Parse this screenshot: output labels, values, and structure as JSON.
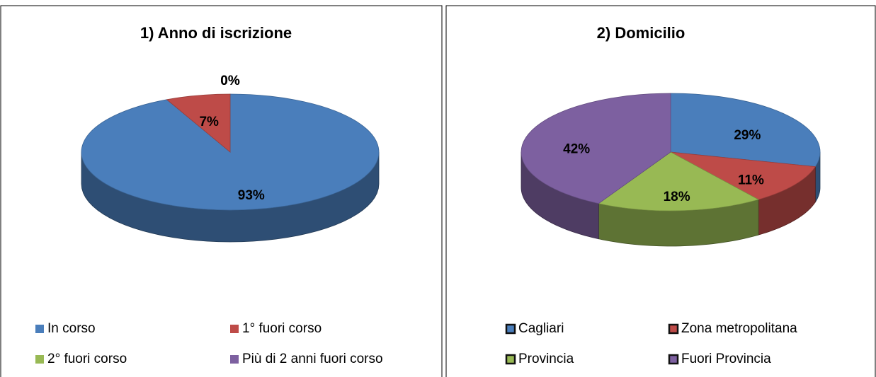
{
  "chart_data": [
    {
      "type": "pie3d",
      "title": "1) Anno di iscrizione",
      "categories": [
        "In corso",
        "1° fuori corso",
        "2° fuori corso",
        "Più di 2 anni fuori corso"
      ],
      "values": [
        93,
        7,
        0,
        0
      ],
      "value_labels": [
        "93%",
        "7%",
        "0%",
        "0%"
      ],
      "colors": [
        "#4a7ebb",
        "#be4b48",
        "#98b954",
        "#7d60a0"
      ],
      "legend_marker_outline": false
    },
    {
      "type": "pie3d",
      "title": "2) Domicilio",
      "categories": [
        "Cagliari",
        "Zona metropolitana",
        "Provincia",
        "Fuori Provincia"
      ],
      "values": [
        29,
        11,
        18,
        42
      ],
      "value_labels": [
        "29%",
        "11%",
        "18%",
        "42%"
      ],
      "colors": [
        "#4a7ebb",
        "#be4b48",
        "#98b954",
        "#7d60a0"
      ],
      "legend_marker_outline": true
    }
  ]
}
